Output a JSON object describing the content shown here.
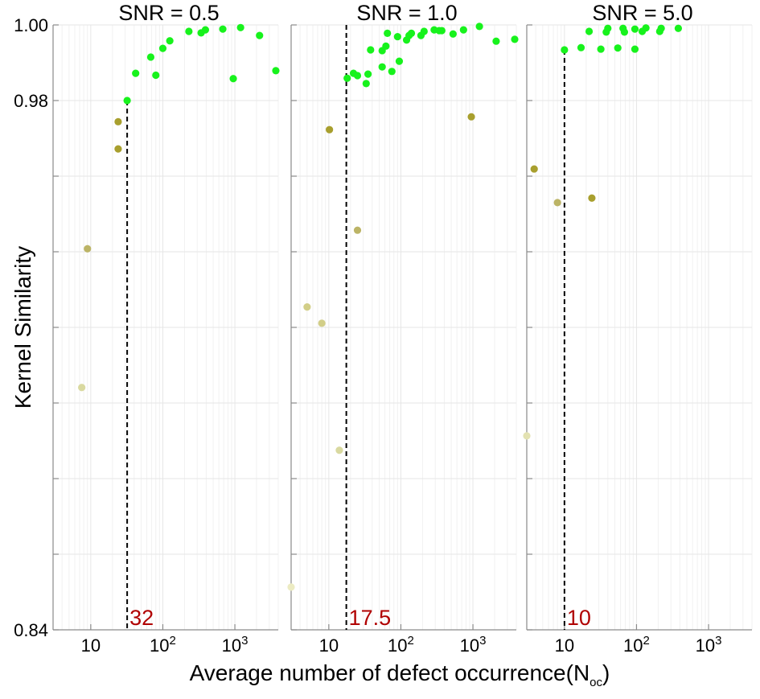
{
  "chart_data": [
    {
      "type": "scatter",
      "title": "SNR = 0.5",
      "xscale": "log",
      "xlim": [
        3,
        4000
      ],
      "ylim": [
        0.84,
        1.0
      ],
      "x_ticks": [
        {
          "value": 10,
          "label": "10"
        },
        {
          "value": 100,
          "label": "10",
          "sup": "2"
        },
        {
          "value": 1000,
          "label": "10",
          "sup": "3"
        }
      ],
      "threshold": {
        "x": 32,
        "label": "32"
      },
      "points": [
        {
          "x": 7.5,
          "y": 0.9041,
          "color": "#d9d9a0"
        },
        {
          "x": 9.0,
          "y": 0.9408,
          "color": "#bcb466"
        },
        {
          "x": 24,
          "y": 0.9744,
          "color": "#a89f2e"
        },
        {
          "x": 24,
          "y": 0.9672,
          "color": "#a89f2e"
        },
        {
          "x": 32,
          "y": 0.98,
          "color": "#17f21c"
        },
        {
          "x": 42,
          "y": 0.9872,
          "color": "#17f21c"
        },
        {
          "x": 68,
          "y": 0.9915,
          "color": "#17f21c"
        },
        {
          "x": 80,
          "y": 0.9867,
          "color": "#17f21c"
        },
        {
          "x": 100,
          "y": 0.9938,
          "color": "#17f21c"
        },
        {
          "x": 125,
          "y": 0.9958,
          "color": "#17f21c"
        },
        {
          "x": 230,
          "y": 0.9983,
          "color": "#17f21c"
        },
        {
          "x": 340,
          "y": 0.9979,
          "color": "#17f21c"
        },
        {
          "x": 390,
          "y": 0.9987,
          "color": "#17f21c"
        },
        {
          "x": 680,
          "y": 0.9989,
          "color": "#17f21c"
        },
        {
          "x": 950,
          "y": 0.9858,
          "color": "#17f21c"
        },
        {
          "x": 1200,
          "y": 0.9993,
          "color": "#17f21c"
        },
        {
          "x": 2200,
          "y": 0.9972,
          "color": "#17f21c"
        },
        {
          "x": 3700,
          "y": 0.9879,
          "color": "#17f21c"
        }
      ]
    },
    {
      "type": "scatter",
      "title": "SNR = 1.0",
      "xscale": "log",
      "xlim": [
        3,
        4000
      ],
      "ylim": [
        0.84,
        1.0
      ],
      "x_ticks": [
        {
          "value": 10,
          "label": "10"
        },
        {
          "value": 100,
          "label": "10",
          "sup": "2"
        },
        {
          "value": 1000,
          "label": "10",
          "sup": "3"
        }
      ],
      "threshold": {
        "x": 17.5,
        "label": "17.5"
      },
      "points": [
        {
          "x": 3.0,
          "y": 0.8513,
          "color": "#ecebc2"
        },
        {
          "x": 5.0,
          "y": 0.9254,
          "color": "#d2ce88"
        },
        {
          "x": 8.0,
          "y": 0.9211,
          "color": "#d2ce88"
        },
        {
          "x": 10.2,
          "y": 0.9723,
          "color": "#a89f2e"
        },
        {
          "x": 14,
          "y": 0.8875,
          "color": "#d9d9a0"
        },
        {
          "x": 18,
          "y": 0.9859,
          "color": "#17f21c"
        },
        {
          "x": 22,
          "y": 0.9872,
          "color": "#17f21c"
        },
        {
          "x": 25,
          "y": 0.9866,
          "color": "#17f21c"
        },
        {
          "x": 25,
          "y": 0.9457,
          "color": "#bcb466"
        },
        {
          "x": 33,
          "y": 0.9845,
          "color": "#17f21c"
        },
        {
          "x": 35,
          "y": 0.987,
          "color": "#17f21c"
        },
        {
          "x": 38,
          "y": 0.9934,
          "color": "#17f21c"
        },
        {
          "x": 55,
          "y": 0.9932,
          "color": "#17f21c"
        },
        {
          "x": 55,
          "y": 0.9889,
          "color": "#17f21c"
        },
        {
          "x": 62,
          "y": 0.9944,
          "color": "#17f21c"
        },
        {
          "x": 65,
          "y": 0.9978,
          "color": "#17f21c"
        },
        {
          "x": 75,
          "y": 0.9877,
          "color": "#17f21c"
        },
        {
          "x": 90,
          "y": 0.9969,
          "color": "#17f21c"
        },
        {
          "x": 95,
          "y": 0.9904,
          "color": "#17f21c"
        },
        {
          "x": 120,
          "y": 0.996,
          "color": "#17f21c"
        },
        {
          "x": 130,
          "y": 0.9972,
          "color": "#17f21c"
        },
        {
          "x": 140,
          "y": 0.9978,
          "color": "#17f21c"
        },
        {
          "x": 190,
          "y": 0.9972,
          "color": "#17f21c"
        },
        {
          "x": 210,
          "y": 0.9983,
          "color": "#17f21c"
        },
        {
          "x": 290,
          "y": 0.9987,
          "color": "#17f21c"
        },
        {
          "x": 340,
          "y": 0.9985,
          "color": "#17f21c"
        },
        {
          "x": 370,
          "y": 0.9985,
          "color": "#17f21c"
        },
        {
          "x": 530,
          "y": 0.9976,
          "color": "#17f21c"
        },
        {
          "x": 740,
          "y": 0.9987,
          "color": "#17f21c"
        },
        {
          "x": 950,
          "y": 0.9757,
          "color": "#a89f2e"
        },
        {
          "x": 1230,
          "y": 0.9996,
          "color": "#17f21c"
        },
        {
          "x": 2100,
          "y": 0.9957,
          "color": "#17f21c"
        },
        {
          "x": 3800,
          "y": 0.9962,
          "color": "#17f21c"
        }
      ]
    },
    {
      "type": "scatter",
      "title": "SNR = 5.0",
      "xscale": "log",
      "xlim": [
        3,
        4000
      ],
      "ylim": [
        0.84,
        1.0
      ],
      "x_ticks": [
        {
          "value": 10,
          "label": "10"
        },
        {
          "value": 100,
          "label": "10",
          "sup": "2"
        },
        {
          "value": 1000,
          "label": "10",
          "sup": "3"
        }
      ],
      "threshold": {
        "x": 10,
        "label": "10"
      },
      "points": [
        {
          "x": 3.0,
          "y": 0.8913,
          "color": "#e3e2b2"
        },
        {
          "x": 3.8,
          "y": 0.9619,
          "color": "#a89f2e"
        },
        {
          "x": 8.0,
          "y": 0.953,
          "color": "#bcb466"
        },
        {
          "x": 10,
          "y": 0.9934,
          "color": "#17f21c"
        },
        {
          "x": 17,
          "y": 0.994,
          "color": "#17f21c"
        },
        {
          "x": 22,
          "y": 0.9983,
          "color": "#17f21c"
        },
        {
          "x": 24,
          "y": 0.9542,
          "color": "#a89f2e"
        },
        {
          "x": 32,
          "y": 0.9936,
          "color": "#17f21c"
        },
        {
          "x": 38,
          "y": 0.9981,
          "color": "#17f21c"
        },
        {
          "x": 40,
          "y": 0.9991,
          "color": "#17f21c"
        },
        {
          "x": 55,
          "y": 0.9939,
          "color": "#17f21c"
        },
        {
          "x": 65,
          "y": 0.9991,
          "color": "#17f21c"
        },
        {
          "x": 68,
          "y": 0.9981,
          "color": "#17f21c"
        },
        {
          "x": 95,
          "y": 0.9936,
          "color": "#17f21c"
        },
        {
          "x": 95,
          "y": 0.9989,
          "color": "#17f21c"
        },
        {
          "x": 120,
          "y": 0.9983,
          "color": "#17f21c"
        },
        {
          "x": 135,
          "y": 0.9992,
          "color": "#17f21c"
        },
        {
          "x": 210,
          "y": 0.9983,
          "color": "#17f21c"
        },
        {
          "x": 220,
          "y": 0.9991,
          "color": "#17f21c"
        },
        {
          "x": 380,
          "y": 0.9991,
          "color": "#17f21c"
        }
      ]
    }
  ],
  "y_axis": {
    "label": "Kernel Similarity",
    "tick_labels": [
      {
        "value": 1.0,
        "label": "1.00"
      },
      {
        "value": 0.98,
        "label": "0.98"
      },
      {
        "value": 0.84,
        "label": "0.84"
      }
    ],
    "tick_values": [
      1.0,
      0.98,
      0.96,
      0.94,
      0.92,
      0.9,
      0.88,
      0.86,
      0.84
    ]
  },
  "x_axis": {
    "label_main": "Average number of defect occurrence(N",
    "label_sub": "oc",
    "label_end": ")"
  }
}
